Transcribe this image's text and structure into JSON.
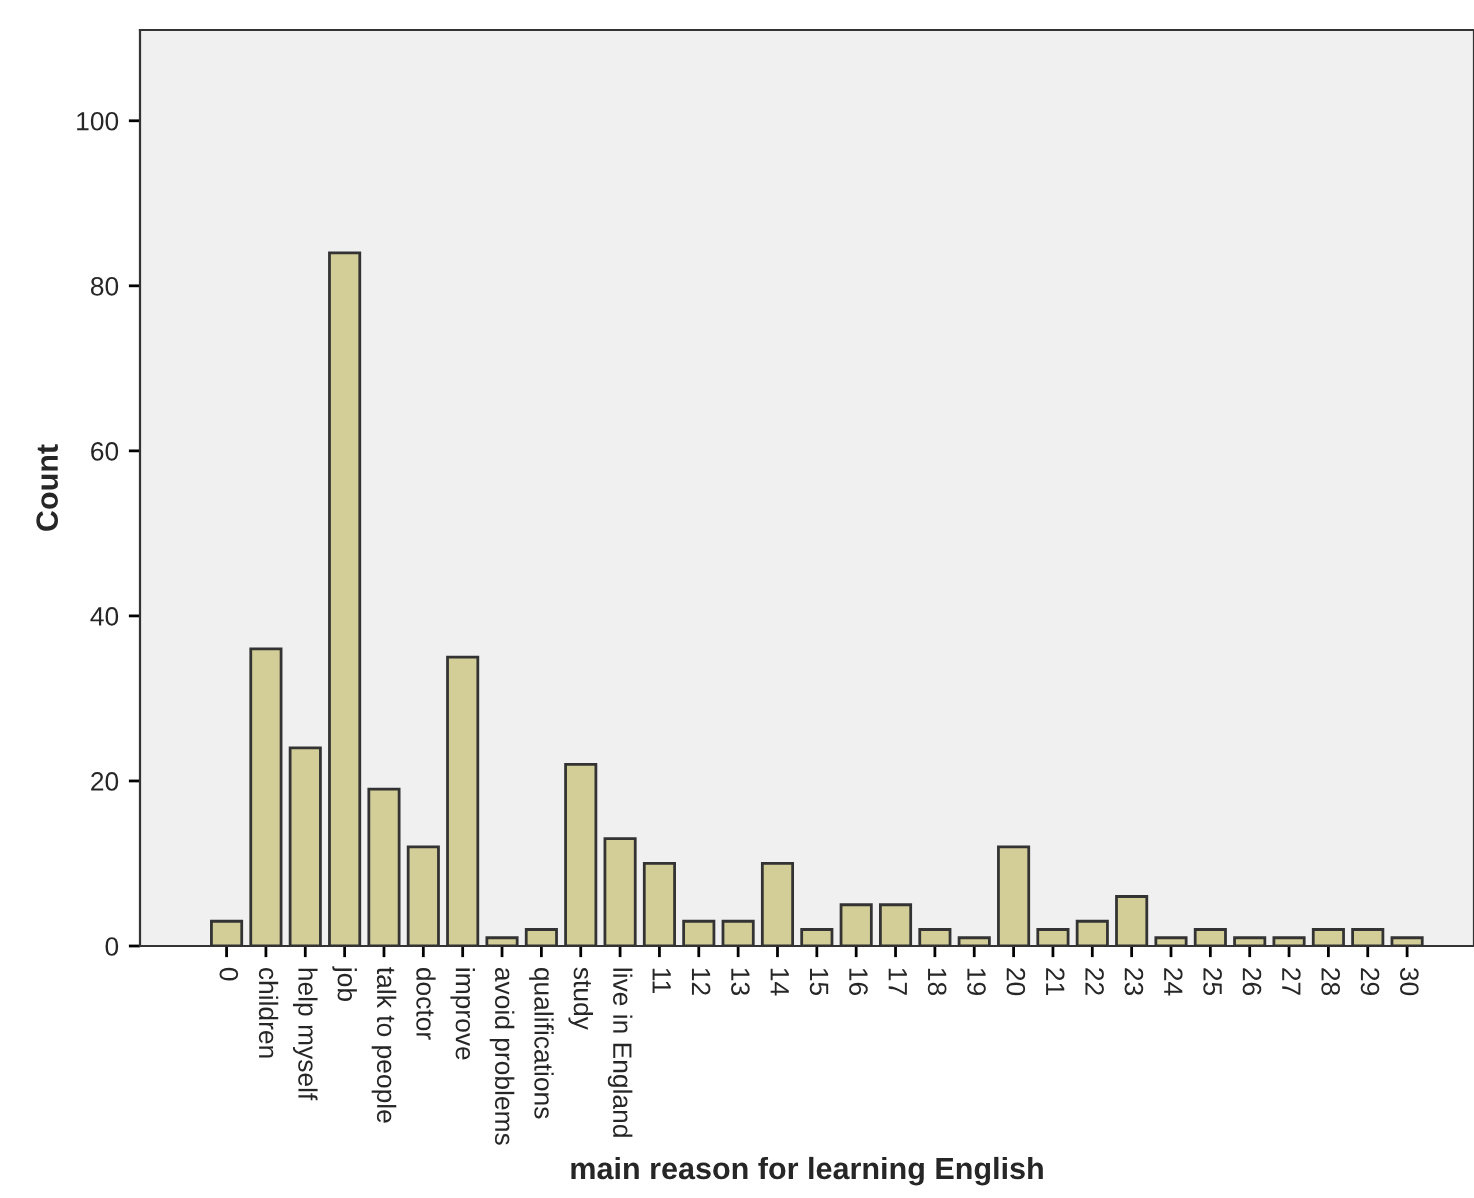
{
  "chart_data": {
    "type": "bar",
    "xlabel": "main reason for learning English",
    "ylabel": "Count",
    "categories": [
      "0",
      "children",
      "help myself",
      "job",
      "talk to people",
      "doctor",
      "improve",
      "avoid problems",
      "qualifications",
      "study",
      "live in England",
      "11",
      "12",
      "13",
      "14",
      "15",
      "16",
      "17",
      "18",
      "19",
      "20",
      "21",
      "22",
      "23",
      "24",
      "25",
      "26",
      "27",
      "28",
      "29",
      "30"
    ],
    "values": [
      3,
      36,
      24,
      84,
      19,
      12,
      35,
      1,
      2,
      22,
      13,
      10,
      3,
      3,
      10,
      2,
      5,
      5,
      2,
      1,
      12,
      2,
      3,
      6,
      1,
      2,
      1,
      1,
      2,
      2,
      1
    ],
    "color": "#d3ce97",
    "ylim": [
      0,
      111
    ],
    "yticks": [
      0,
      20,
      40,
      60,
      80,
      100
    ],
    "grid": false,
    "legend": false
  }
}
